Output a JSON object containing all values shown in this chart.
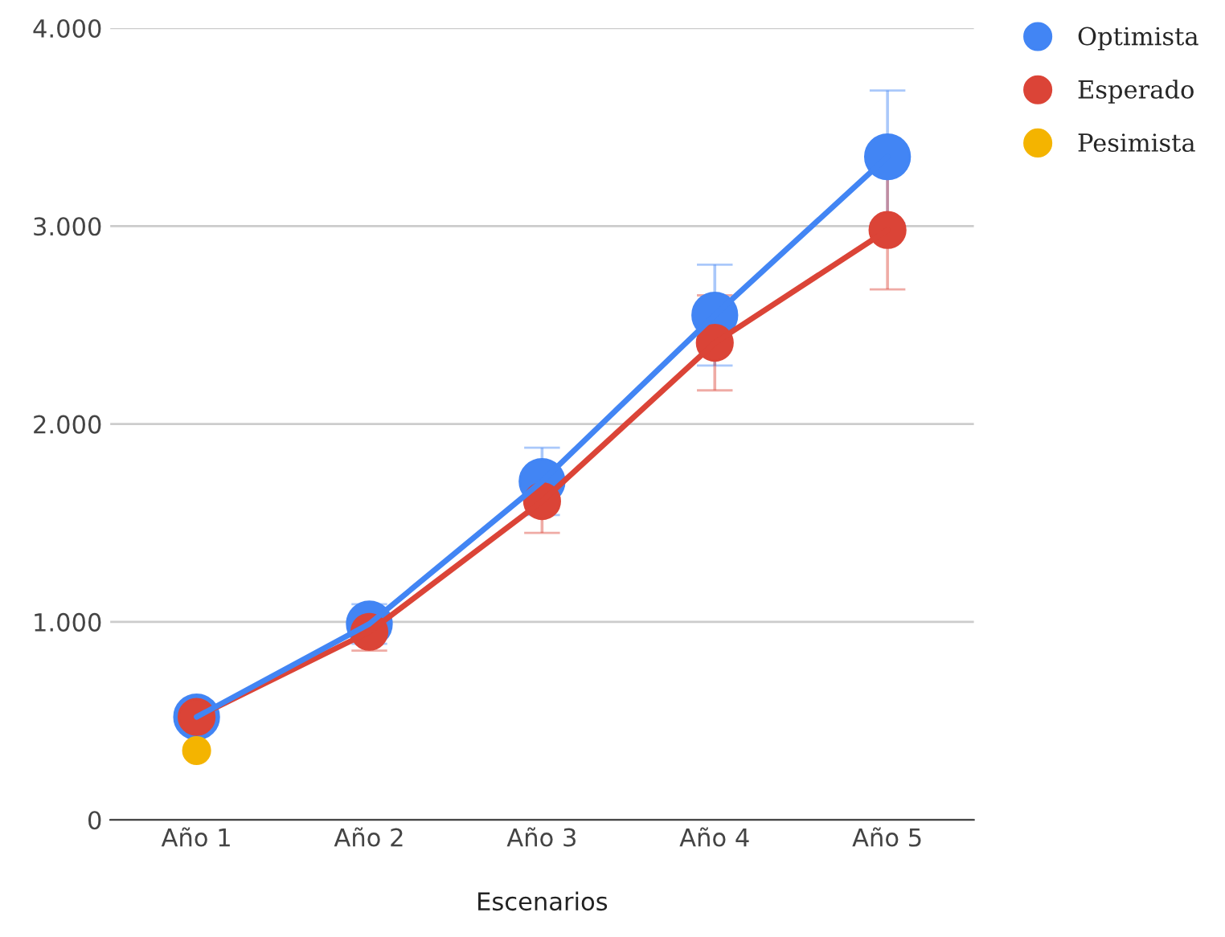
{
  "chart_data": {
    "type": "line",
    "xlabel": "Escenarios",
    "categories": [
      "Año 1",
      "Año 2",
      "Año 3",
      "Año 4",
      "Año 5"
    ],
    "series": [
      {
        "name": "Optimista",
        "color": "#4285f4",
        "values": [
          520,
          990,
          1710,
          2550,
          3350
        ],
        "errors": [
          null,
          100,
          170,
          255,
          335
        ]
      },
      {
        "name": "Esperado",
        "color": "#db4437",
        "values": [
          520,
          950,
          1610,
          2410,
          2980
        ],
        "errors": [
          null,
          95,
          160,
          240,
          300
        ]
      },
      {
        "name": "Pesimista",
        "color": "#f4b400",
        "values": [
          350,
          null,
          null,
          null,
          null
        ]
      }
    ],
    "ylim": [
      0,
      4000
    ],
    "yticks": [
      {
        "value": 0,
        "label": "0"
      },
      {
        "value": 1000,
        "label": "1.000"
      },
      {
        "value": 2000,
        "label": "2.000"
      },
      {
        "value": 3000,
        "label": "3.000"
      },
      {
        "value": 4000,
        "label": "4.000"
      }
    ],
    "grid": "y",
    "legend": "top right",
    "marker": "circle",
    "line_style": "solid"
  }
}
